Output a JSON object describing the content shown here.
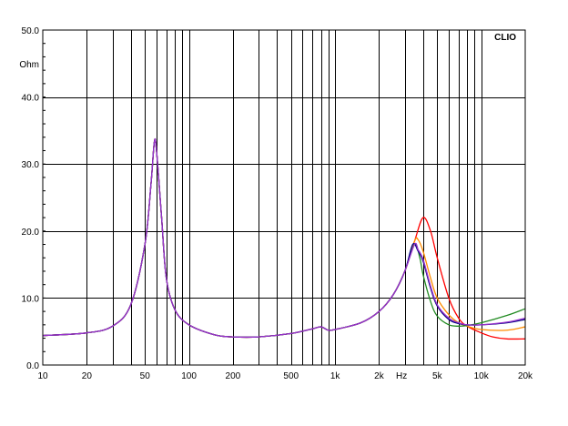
{
  "chart_data": {
    "type": "line",
    "brand": "CLIO",
    "ylabel": "Ohm",
    "xlabel": "Hz",
    "x_scale": "log",
    "xlim": [
      10,
      20000
    ],
    "ylim": [
      0,
      50
    ],
    "grid": true,
    "legend": "none",
    "x_tick_labels": [
      {
        "value": 10,
        "label": "10"
      },
      {
        "value": 20,
        "label": "20"
      },
      {
        "value": 50,
        "label": "50"
      },
      {
        "value": 100,
        "label": "100"
      },
      {
        "value": 200,
        "label": "200"
      },
      {
        "value": 500,
        "label": "500"
      },
      {
        "value": 1000,
        "label": "1k"
      },
      {
        "value": 2000,
        "label": "2k"
      },
      {
        "value": 5000,
        "label": "5k"
      },
      {
        "value": 10000,
        "label": "10k"
      },
      {
        "value": 20000,
        "label": "20k"
      }
    ],
    "y_tick_labels": [
      {
        "value": 0,
        "label": "0.0"
      },
      {
        "value": 10,
        "label": "10.0"
      },
      {
        "value": 20,
        "label": "20.0"
      },
      {
        "value": 30,
        "label": "30.0"
      },
      {
        "value": 40,
        "label": "40.0"
      },
      {
        "value": 50,
        "label": "50.0"
      }
    ],
    "series": [
      {
        "color": "#ff0000",
        "points": [
          [
            10,
            4.4
          ],
          [
            20,
            4.8
          ],
          [
            30,
            5.8
          ],
          [
            40,
            9.0
          ],
          [
            50,
            18
          ],
          [
            55,
            27
          ],
          [
            58,
            33.3
          ],
          [
            60,
            32
          ],
          [
            65,
            22
          ],
          [
            70,
            13
          ],
          [
            80,
            8.3
          ],
          [
            100,
            6.0
          ],
          [
            150,
            4.5
          ],
          [
            200,
            4.2
          ],
          [
            300,
            4.2
          ],
          [
            500,
            4.7
          ],
          [
            700,
            5.4
          ],
          [
            800,
            5.7
          ],
          [
            900,
            5.2
          ],
          [
            1000,
            5.3
          ],
          [
            1500,
            6.3
          ],
          [
            2000,
            8.0
          ],
          [
            2500,
            10.5
          ],
          [
            3000,
            14
          ],
          [
            3500,
            18.5
          ],
          [
            4000,
            22.0
          ],
          [
            4500,
            20
          ],
          [
            5000,
            16
          ],
          [
            6000,
            10
          ],
          [
            7000,
            7.0
          ],
          [
            8000,
            5.8
          ],
          [
            10000,
            4.8
          ],
          [
            12000,
            4.2
          ],
          [
            15000,
            3.9
          ],
          [
            20000,
            3.9
          ]
        ]
      },
      {
        "color": "#ff8c00",
        "points": [
          [
            10,
            4.4
          ],
          [
            20,
            4.8
          ],
          [
            30,
            5.8
          ],
          [
            40,
            9.0
          ],
          [
            50,
            18
          ],
          [
            55,
            27
          ],
          [
            58,
            33.3
          ],
          [
            60,
            32
          ],
          [
            65,
            22
          ],
          [
            70,
            13
          ],
          [
            80,
            8.3
          ],
          [
            100,
            6.0
          ],
          [
            150,
            4.5
          ],
          [
            200,
            4.2
          ],
          [
            300,
            4.2
          ],
          [
            500,
            4.7
          ],
          [
            700,
            5.4
          ],
          [
            800,
            5.7
          ],
          [
            900,
            5.2
          ],
          [
            1000,
            5.3
          ],
          [
            1500,
            6.3
          ],
          [
            2000,
            8.0
          ],
          [
            2500,
            10.5
          ],
          [
            3000,
            14
          ],
          [
            3500,
            18.5
          ],
          [
            3700,
            18.7
          ],
          [
            4000,
            17
          ],
          [
            4500,
            13
          ],
          [
            5000,
            10
          ],
          [
            6000,
            7.5
          ],
          [
            7000,
            6.3
          ],
          [
            8000,
            5.8
          ],
          [
            10000,
            5.3
          ],
          [
            15000,
            5.2
          ],
          [
            20000,
            5.7
          ]
        ]
      },
      {
        "color": "#228b22",
        "points": [
          [
            10,
            4.4
          ],
          [
            20,
            4.8
          ],
          [
            30,
            5.8
          ],
          [
            40,
            9.0
          ],
          [
            50,
            18
          ],
          [
            55,
            27
          ],
          [
            58,
            33.3
          ],
          [
            60,
            32
          ],
          [
            65,
            22
          ],
          [
            70,
            13
          ],
          [
            80,
            8.3
          ],
          [
            100,
            6.0
          ],
          [
            150,
            4.5
          ],
          [
            200,
            4.2
          ],
          [
            300,
            4.2
          ],
          [
            500,
            4.7
          ],
          [
            700,
            5.4
          ],
          [
            800,
            5.7
          ],
          [
            900,
            5.2
          ],
          [
            1000,
            5.3
          ],
          [
            1500,
            6.3
          ],
          [
            2000,
            8.0
          ],
          [
            2500,
            10.5
          ],
          [
            3000,
            14
          ],
          [
            3500,
            18.0
          ],
          [
            3800,
            16
          ],
          [
            4000,
            13.5
          ],
          [
            4500,
            9.5
          ],
          [
            5000,
            7.3
          ],
          [
            6000,
            6.0
          ],
          [
            7000,
            5.8
          ],
          [
            8000,
            5.9
          ],
          [
            10000,
            6.3
          ],
          [
            15000,
            7.4
          ],
          [
            20000,
            8.4
          ]
        ]
      },
      {
        "color": "#000080",
        "points": [
          [
            10,
            4.4
          ],
          [
            20,
            4.8
          ],
          [
            30,
            5.8
          ],
          [
            40,
            9.0
          ],
          [
            50,
            18
          ],
          [
            55,
            27
          ],
          [
            58,
            33.3
          ],
          [
            60,
            32
          ],
          [
            65,
            22
          ],
          [
            70,
            13
          ],
          [
            80,
            8.3
          ],
          [
            100,
            6.0
          ],
          [
            150,
            4.5
          ],
          [
            200,
            4.2
          ],
          [
            300,
            4.2
          ],
          [
            500,
            4.7
          ],
          [
            700,
            5.4
          ],
          [
            800,
            5.7
          ],
          [
            900,
            5.2
          ],
          [
            1000,
            5.3
          ],
          [
            1500,
            6.3
          ],
          [
            2000,
            8.0
          ],
          [
            2500,
            10.5
          ],
          [
            3000,
            14
          ],
          [
            3400,
            18.0
          ],
          [
            3700,
            17
          ],
          [
            4000,
            15.5
          ],
          [
            4500,
            11.5
          ],
          [
            5000,
            8.8
          ],
          [
            6000,
            6.8
          ],
          [
            7000,
            6.2
          ],
          [
            8000,
            6.0
          ],
          [
            10000,
            6.0
          ],
          [
            15000,
            6.3
          ],
          [
            20000,
            6.8
          ]
        ]
      },
      {
        "color": "#9932cc",
        "points": [
          [
            10,
            4.4
          ],
          [
            20,
            4.8
          ],
          [
            30,
            5.8
          ],
          [
            40,
            9.0
          ],
          [
            50,
            18
          ],
          [
            55,
            27
          ],
          [
            58,
            33.3
          ],
          [
            60,
            32
          ],
          [
            65,
            22
          ],
          [
            70,
            13
          ],
          [
            80,
            8.3
          ],
          [
            100,
            6.0
          ],
          [
            150,
            4.5
          ],
          [
            200,
            4.2
          ],
          [
            300,
            4.2
          ],
          [
            500,
            4.7
          ],
          [
            700,
            5.4
          ],
          [
            800,
            5.7
          ],
          [
            900,
            5.2
          ],
          [
            1000,
            5.3
          ],
          [
            1500,
            6.3
          ],
          [
            2000,
            8.0
          ],
          [
            2500,
            10.5
          ],
          [
            3000,
            14
          ],
          [
            3500,
            18.0
          ],
          [
            3700,
            17.2
          ],
          [
            4000,
            15.8
          ],
          [
            4500,
            11.8
          ],
          [
            5000,
            9.0
          ],
          [
            6000,
            7.0
          ],
          [
            7000,
            6.3
          ],
          [
            8000,
            6.0
          ],
          [
            10000,
            6.0
          ],
          [
            15000,
            6.4
          ],
          [
            20000,
            7.0
          ]
        ]
      }
    ]
  }
}
